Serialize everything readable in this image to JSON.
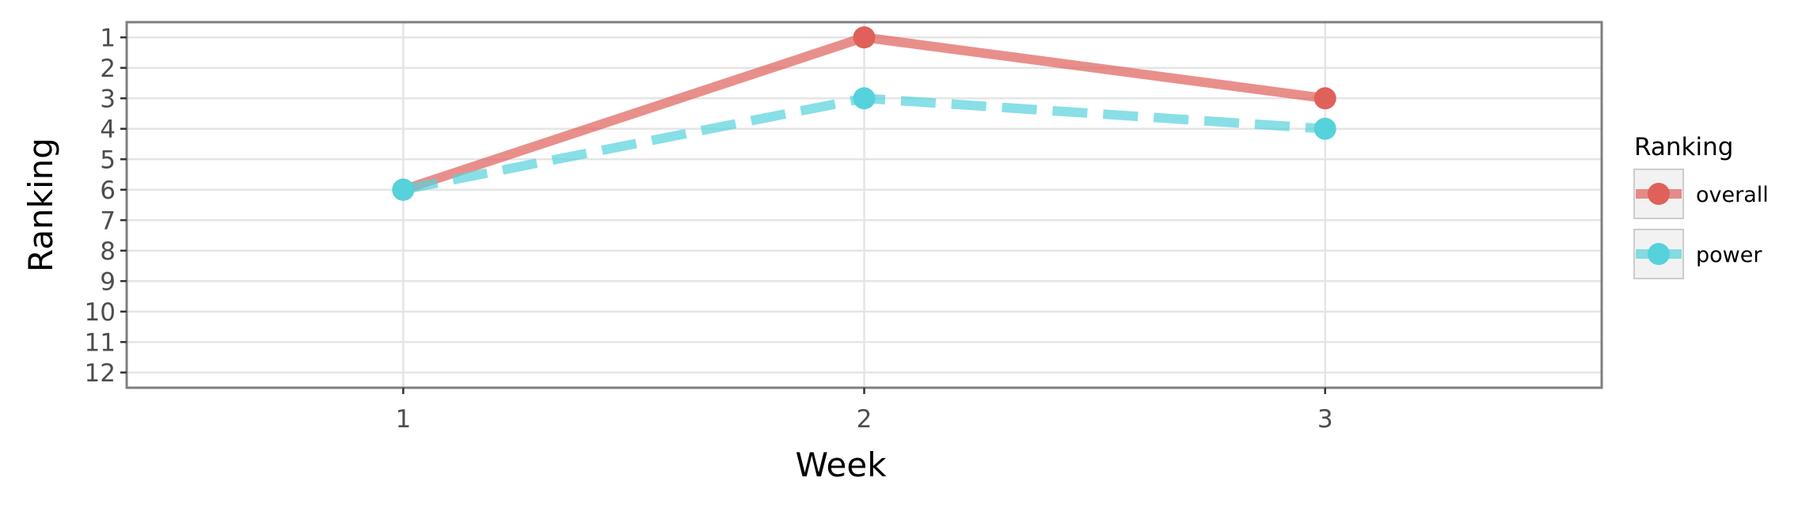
{
  "chart_data": {
    "type": "line",
    "xlabel": "Week",
    "ylabel": "Ranking",
    "x": [
      1,
      2,
      3
    ],
    "x_ticks": [
      "1",
      "2",
      "3"
    ],
    "xlim": [
      0.4,
      3.6
    ],
    "ylim": [
      12.5,
      0.5
    ],
    "y_reversed": true,
    "y_ticks": [
      "1",
      "2",
      "3",
      "4",
      "5",
      "6",
      "7",
      "8",
      "9",
      "10",
      "11",
      "12"
    ],
    "grid": true,
    "legend": {
      "title": "Ranking",
      "placement": "right"
    },
    "series": [
      {
        "name": "overall",
        "values": [
          6,
          1,
          3
        ],
        "color": "#e0605a",
        "linestyle": "solid"
      },
      {
        "name": "power",
        "values": [
          6,
          3,
          4
        ],
        "color": "#55d2db",
        "linestyle": "dashed"
      }
    ]
  }
}
